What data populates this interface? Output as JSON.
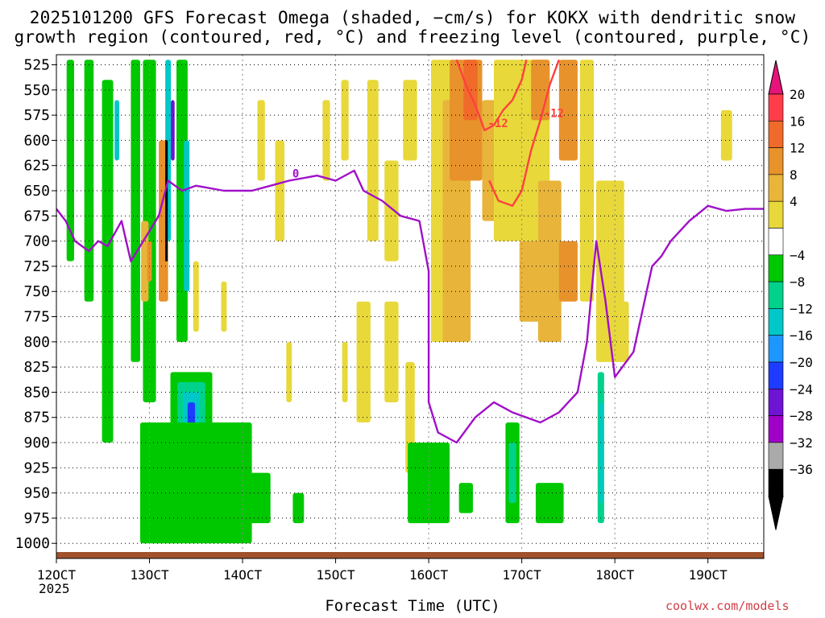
{
  "title_line1": "2025101200 GFS Forecast Omega (shaded, −cm/s) for KOKX with dendritic snow",
  "title_line2": "growth region (contoured, red, °C) and freezing level (contoured, purple, °C)",
  "xlabel": "Forecast Time (UTC)",
  "year_label": "2025",
  "credit": "coolwx.com/models",
  "chart_data": {
    "type": "heatmap",
    "title": "2025101200 GFS Forecast Omega (shaded, −cm/s) for KOKX with dendritic snow growth region (contoured, red, °C) and freezing level (contoured, purple, °C)",
    "xlabel": "Forecast Time (UTC)",
    "ylabel": "",
    "x_ticks": [
      "12OCT",
      "13OCT",
      "14OCT",
      "15OCT",
      "16OCT",
      "17OCT",
      "18OCT",
      "19OCT"
    ],
    "x_range_days": [
      12,
      19.6
    ],
    "y_ticks": [
      525,
      550,
      575,
      600,
      625,
      650,
      675,
      700,
      725,
      750,
      775,
      800,
      825,
      850,
      875,
      900,
      925,
      950,
      975,
      1000
    ],
    "y_range_hpa": [
      515,
      1015
    ],
    "grid": true,
    "colorbar": {
      "labels": [
        "20",
        "16",
        "12",
        "8",
        "4",
        "−4",
        "−8",
        "−12",
        "−16",
        "−20",
        "−24",
        "−28",
        "−32",
        "−36"
      ],
      "colors": [
        "#ff3d4a",
        "#f06a2a",
        "#e8922c",
        "#e8b43a",
        "#e8d83a",
        "#ffffff",
        "#00c800",
        "#00d28c",
        "#00c8c8",
        "#1e96ff",
        "#1e3cff",
        "#6e14d2",
        "#a000c8",
        "#aaaaaa",
        "#000000"
      ],
      "top_arrow_color": "#e6147a",
      "bottom_arrow_color": "#000000"
    },
    "contours": [
      {
        "name": "freezing level",
        "color": "#a010c8",
        "label": "0",
        "points": [
          [
            12.0,
            668
          ],
          [
            12.1,
            680
          ],
          [
            12.2,
            700
          ],
          [
            12.35,
            710
          ],
          [
            12.45,
            700
          ],
          [
            12.55,
            705
          ],
          [
            12.7,
            680
          ],
          [
            12.8,
            720
          ],
          [
            13.0,
            690
          ],
          [
            13.1,
            675
          ],
          [
            13.2,
            640
          ],
          [
            13.35,
            650
          ],
          [
            13.5,
            645
          ],
          [
            13.8,
            650
          ],
          [
            14.1,
            650
          ],
          [
            14.3,
            645
          ],
          [
            14.5,
            640
          ],
          [
            14.8,
            635
          ],
          [
            15.0,
            640
          ],
          [
            15.2,
            630
          ],
          [
            15.3,
            650
          ],
          [
            15.5,
            660
          ],
          [
            15.7,
            675
          ],
          [
            15.9,
            680
          ],
          [
            16.0,
            730
          ],
          [
            16.0,
            800
          ],
          [
            16.0,
            860
          ],
          [
            16.1,
            890
          ],
          [
            16.3,
            900
          ],
          [
            16.5,
            875
          ],
          [
            16.7,
            860
          ],
          [
            16.9,
            870
          ],
          [
            17.2,
            880
          ],
          [
            17.4,
            870
          ],
          [
            17.6,
            850
          ],
          [
            17.7,
            800
          ],
          [
            17.8,
            700
          ],
          [
            17.9,
            760
          ],
          [
            18.0,
            835
          ],
          [
            18.2,
            810
          ],
          [
            18.4,
            725
          ],
          [
            18.5,
            715
          ],
          [
            18.6,
            700
          ],
          [
            18.8,
            680
          ],
          [
            19.0,
            665
          ],
          [
            19.2,
            670
          ],
          [
            19.4,
            668
          ],
          [
            19.6,
            668
          ]
        ]
      },
      {
        "name": "dendritic snow growth",
        "color": "#ff4040",
        "label": "-12",
        "points": [
          [
            16.3,
            520
          ],
          [
            16.4,
            545
          ],
          [
            16.5,
            565
          ],
          [
            16.6,
            590
          ],
          [
            16.7,
            585
          ],
          [
            16.8,
            570
          ],
          [
            16.9,
            560
          ],
          [
            17.0,
            540
          ],
          [
            17.05,
            520
          ]
        ]
      },
      {
        "name": "dendritic snow growth west",
        "color": "#ff4040",
        "label": "-12",
        "points": [
          [
            17.4,
            520
          ],
          [
            17.3,
            545
          ],
          [
            17.2,
            580
          ],
          [
            17.1,
            610
          ],
          [
            17.0,
            650
          ],
          [
            16.9,
            665
          ],
          [
            16.75,
            660
          ],
          [
            16.65,
            640
          ]
        ]
      }
    ]
  }
}
